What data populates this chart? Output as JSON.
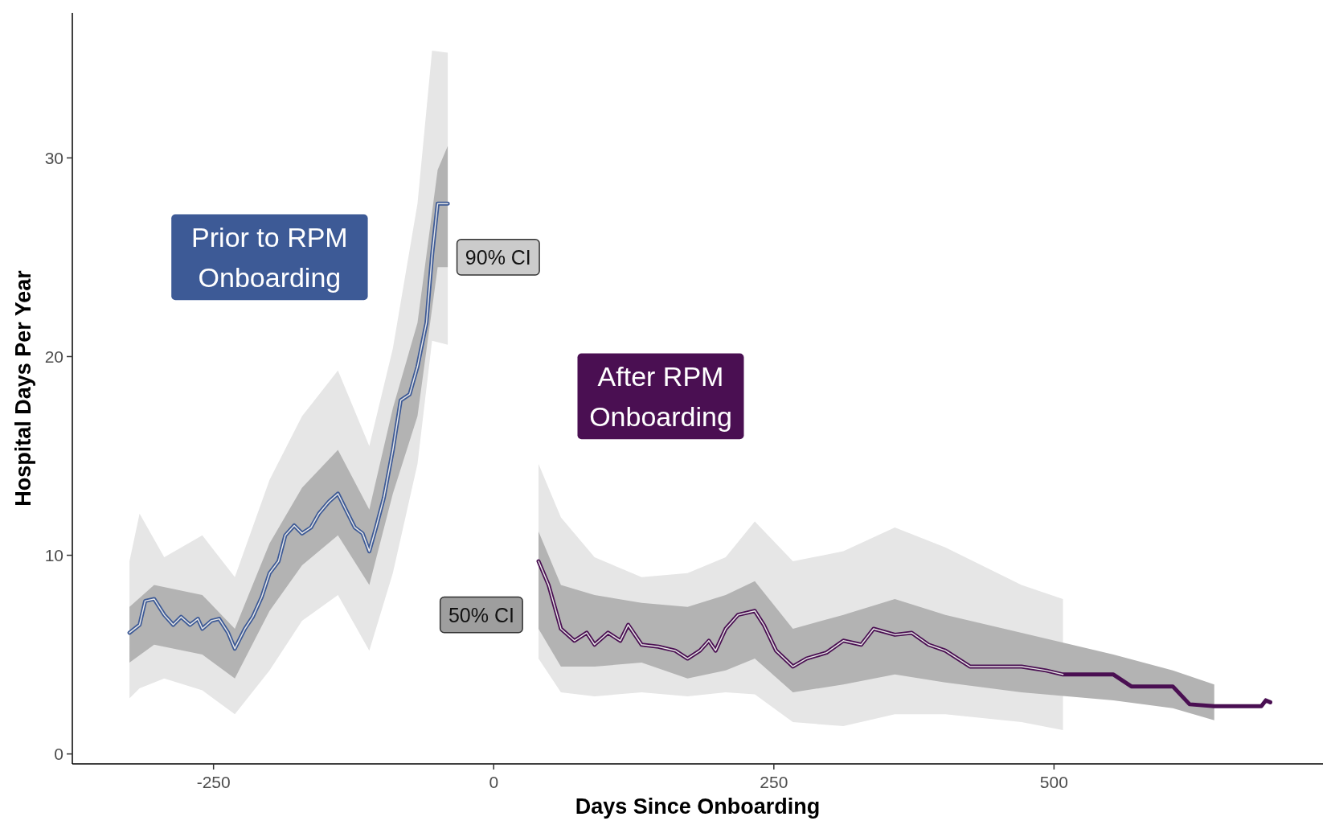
{
  "chart_data": {
    "type": "line",
    "xlabel": "Days Since Onboarding",
    "ylabel": "Hospital Days Per Year",
    "xlim": [
      -376,
      740
    ],
    "ylim": [
      -0.5,
      37.3
    ],
    "xticks": [
      -250,
      0,
      250,
      500
    ],
    "yticks": [
      0,
      10,
      20,
      30
    ],
    "grid": false,
    "legend": false,
    "marker": "none",
    "line_style": "solid",
    "annotations": [
      "90% CI",
      "50% CI"
    ],
    "series": [
      {
        "color": "#e6e6e6",
        "x": [
          -325,
          -316,
          -311,
          -303,
          -294,
          -286,
          -279,
          -271,
          -264,
          -260,
          -252,
          -245,
          -237,
          -231,
          -222,
          -215,
          -207,
          -200,
          -192,
          -186,
          -178,
          -171,
          -163,
          -156,
          -147,
          -139,
          -132,
          -124,
          -117,
          -111,
          -105,
          -98,
          -90,
          -83,
          -75,
          -68,
          -60,
          -55,
          -50,
          -41
        ],
        "values": [
          6.1,
          6.5,
          7.7,
          7.8,
          7.0,
          6.5,
          6.9,
          6.5,
          6.8,
          6.3,
          6.7,
          6.8,
          6.1,
          5.3,
          6.3,
          6.9,
          7.9,
          9.1,
          9.7,
          11.0,
          11.5,
          11.1,
          11.4,
          12.1,
          12.7,
          13.1,
          12.3,
          11.4,
          11.1,
          10.2,
          11.4,
          12.9,
          15.3,
          17.8,
          18.1,
          19.5,
          21.7,
          25.1,
          27.7,
          27.7
        ],
        "lower": [
          2.8,
          3.3,
          null,
          null,
          3.8,
          null,
          null,
          null,
          null,
          3.2,
          null,
          null,
          null,
          2.0,
          null,
          null,
          null,
          4.2,
          null,
          null,
          null,
          6.7,
          null,
          null,
          null,
          8.0,
          null,
          null,
          null,
          5.2,
          null,
          null,
          9.1,
          null,
          null,
          14.6,
          null,
          20.8,
          null,
          20.6
        ],
        "upper": [
          9.7,
          12.1,
          null,
          null,
          9.9,
          null,
          null,
          null,
          null,
          11.0,
          null,
          null,
          null,
          8.9,
          null,
          null,
          null,
          13.8,
          null,
          null,
          null,
          17.0,
          null,
          null,
          null,
          19.3,
          null,
          null,
          null,
          15.5,
          null,
          null,
          20.4,
          null,
          null,
          27.7,
          null,
          35.4,
          null,
          35.3
        ]
      },
      {
        "color": "#e6e6e6",
        "x": [
          40,
          49,
          60,
          72,
          83,
          90,
          102,
          113,
          120,
          132,
          147,
          162,
          173,
          184,
          192,
          198,
          207,
          218,
          233,
          241,
          252,
          267,
          279,
          297,
          312,
          328,
          339,
          358,
          373,
          388,
          403,
          425,
          471,
          493,
          508
        ],
        "values": [
          9.7,
          8.5,
          6.3,
          5.7,
          6.1,
          5.5,
          6.1,
          5.7,
          6.5,
          5.5,
          5.4,
          5.2,
          4.8,
          5.2,
          5.7,
          5.2,
          6.3,
          7.0,
          7.2,
          6.5,
          5.2,
          4.4,
          4.8,
          5.1,
          5.7,
          5.5,
          6.3,
          6.0,
          6.1,
          5.5,
          5.2,
          4.4,
          4.4,
          4.2,
          4.0
        ],
        "lower": [
          4.8,
          null,
          3.1,
          null,
          null,
          2.9,
          null,
          null,
          null,
          3.1,
          null,
          null,
          2.9,
          null,
          null,
          null,
          3.1,
          null,
          3.0,
          null,
          null,
          1.6,
          null,
          null,
          1.4,
          null,
          null,
          2.0,
          null,
          null,
          2.0,
          null,
          1.6,
          null,
          1.2
        ],
        "upper": [
          14.6,
          null,
          11.9,
          null,
          null,
          9.9,
          null,
          null,
          null,
          8.9,
          null,
          null,
          9.1,
          null,
          null,
          null,
          9.9,
          null,
          11.7,
          null,
          null,
          9.7,
          null,
          null,
          10.2,
          null,
          null,
          11.4,
          null,
          null,
          10.4,
          null,
          8.5,
          null,
          7.8
        ]
      },
      {
        "name": "Prior to RPM Onboarding",
        "color": "#3d5a96",
        "x": [
          -325,
          -316,
          -311,
          -303,
          -294,
          -286,
          -279,
          -271,
          -264,
          -260,
          -252,
          -245,
          -237,
          -231,
          -222,
          -215,
          -207,
          -200,
          -192,
          -186,
          -178,
          -171,
          -163,
          -156,
          -147,
          -139,
          -132,
          -124,
          -117,
          -111,
          -105,
          -98,
          -90,
          -83,
          -75,
          -68,
          -60,
          -55,
          -50,
          -41
        ],
        "values": [
          6.1,
          6.5,
          7.7,
          7.8,
          7.0,
          6.5,
          6.9,
          6.5,
          6.8,
          6.3,
          6.7,
          6.8,
          6.1,
          5.3,
          6.3,
          6.9,
          7.9,
          9.1,
          9.7,
          11.0,
          11.5,
          11.1,
          11.4,
          12.1,
          12.7,
          13.1,
          12.3,
          11.4,
          11.1,
          10.2,
          11.4,
          12.9,
          15.3,
          17.8,
          18.1,
          19.5,
          21.7,
          25.1,
          27.7,
          27.7
        ],
        "lower": [
          4.6,
          null,
          null,
          5.5,
          null,
          null,
          null,
          null,
          null,
          5.0,
          null,
          null,
          null,
          3.8,
          null,
          null,
          null,
          7.2,
          null,
          null,
          null,
          9.5,
          null,
          null,
          null,
          11.0,
          null,
          null,
          null,
          8.5,
          null,
          null,
          13.1,
          null,
          null,
          17.0,
          null,
          null,
          24.5,
          24.5
        ],
        "upper": [
          7.4,
          null,
          null,
          8.5,
          null,
          null,
          null,
          null,
          null,
          8.0,
          null,
          null,
          null,
          6.3,
          null,
          null,
          null,
          10.6,
          null,
          null,
          null,
          13.4,
          null,
          null,
          null,
          15.3,
          null,
          null,
          null,
          12.3,
          null,
          null,
          17.4,
          null,
          null,
          21.7,
          null,
          null,
          29.4,
          30.6
        ]
      },
      {
        "name": "After RPM Onboarding",
        "color": "#4a0f52",
        "x": [
          40,
          49,
          60,
          72,
          83,
          90,
          102,
          113,
          120,
          132,
          147,
          162,
          173,
          184,
          192,
          198,
          207,
          218,
          233,
          241,
          252,
          267,
          279,
          297,
          312,
          328,
          339,
          358,
          373,
          388,
          403,
          425,
          471,
          493,
          508,
          553,
          569,
          606,
          621,
          643,
          685,
          689,
          693
        ],
        "values": [
          9.7,
          8.5,
          6.3,
          5.7,
          6.1,
          5.5,
          6.1,
          5.7,
          6.5,
          5.5,
          5.4,
          5.2,
          4.8,
          5.2,
          5.7,
          5.2,
          6.3,
          7.0,
          7.2,
          6.5,
          5.2,
          4.4,
          4.8,
          5.1,
          5.7,
          5.5,
          6.3,
          6.0,
          6.1,
          5.5,
          5.2,
          4.4,
          4.4,
          4.2,
          4.0,
          4.0,
          3.4,
          3.4,
          2.5,
          2.4,
          2.4,
          2.7,
          2.6
        ],
        "lower": [
          6.3,
          null,
          4.4,
          null,
          null,
          4.4,
          null,
          null,
          null,
          4.6,
          null,
          null,
          3.8,
          null,
          null,
          null,
          4.2,
          null,
          4.8,
          null,
          null,
          3.1,
          null,
          null,
          3.5,
          null,
          null,
          4.0,
          null,
          null,
          3.6,
          null,
          3.1,
          null,
          null,
          2.7,
          null,
          2.3,
          null,
          1.7,
          null,
          null,
          null
        ],
        "upper": [
          11.2,
          null,
          8.5,
          null,
          null,
          8.0,
          null,
          null,
          null,
          7.6,
          null,
          null,
          7.4,
          null,
          null,
          null,
          8.0,
          null,
          8.7,
          null,
          null,
          6.3,
          null,
          null,
          7.0,
          null,
          null,
          7.8,
          null,
          null,
          7.0,
          null,
          6.1,
          null,
          null,
          5.0,
          null,
          4.2,
          null,
          3.5,
          null,
          null,
          null
        ]
      }
    ]
  }
}
